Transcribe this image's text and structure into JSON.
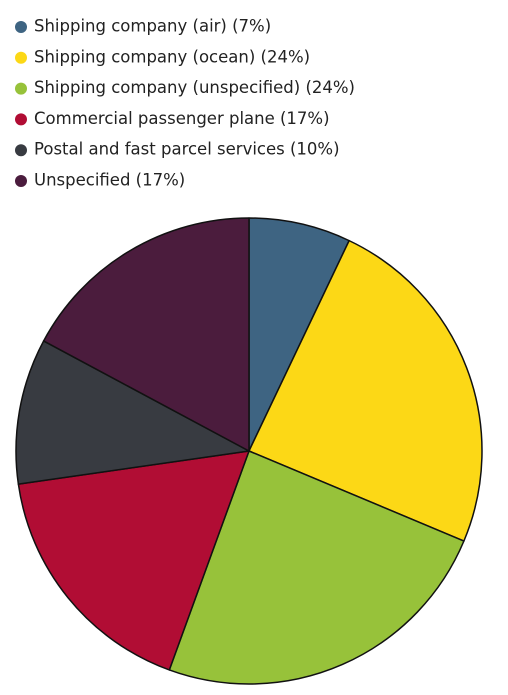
{
  "chart_data": {
    "type": "pie",
    "categories": [
      "Shipping company (air) (7%)",
      "Shipping company (ocean) (24%)",
      "Shipping company (unspecified) (24%)",
      "Commercial passenger plane (17%)",
      "Postal and fast parcel services (10%)",
      "Unspecified (17%)"
    ],
    "values": [
      7,
      24,
      24,
      17,
      10,
      17
    ],
    "colors": [
      "#3e6482",
      "#fcd816",
      "#97c23a",
      "#b10d34",
      "#383b41",
      "#4b1c3d"
    ],
    "legend": "top-left"
  }
}
